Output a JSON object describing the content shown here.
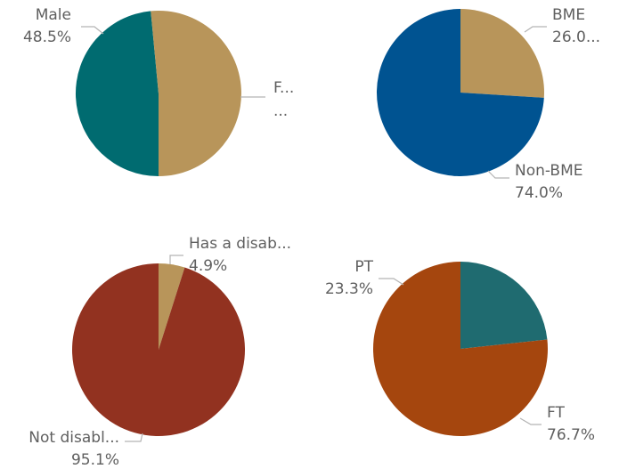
{
  "chart_data": [
    {
      "type": "pie",
      "title": "",
      "slices": [
        {
          "label": "Male",
          "value": 48.5,
          "color": "#006B70",
          "name_text": "Male",
          "value_text": "48.5%"
        },
        {
          "label": "Female",
          "value": 51.5,
          "color": "#B8955A",
          "name_text": "F...",
          "value_text": "..."
        }
      ]
    },
    {
      "type": "pie",
      "title": "",
      "slices": [
        {
          "label": "BME",
          "value": 26.0,
          "color": "#B8955A",
          "name_text": "BME",
          "value_text": "26.0..."
        },
        {
          "label": "Non-BME",
          "value": 74.0,
          "color": "#005391",
          "name_text": "Non-BME",
          "value_text": "74.0%"
        }
      ]
    },
    {
      "type": "pie",
      "title": "",
      "slices": [
        {
          "label": "Has a disability",
          "value": 4.9,
          "color": "#B8955A",
          "name_text": "Has a disab...",
          "value_text": "4.9%"
        },
        {
          "label": "Not disabled",
          "value": 95.1,
          "color": "#923220",
          "name_text": "Not disabl...",
          "value_text": "95.1%"
        }
      ]
    },
    {
      "type": "pie",
      "title": "",
      "slices": [
        {
          "label": "PT",
          "value": 23.3,
          "color": "#1F6B70",
          "name_text": "PT",
          "value_text": "23.3%"
        },
        {
          "label": "FT",
          "value": 76.7,
          "color": "#A5460E",
          "name_text": "FT",
          "value_text": "76.7%"
        }
      ]
    }
  ]
}
